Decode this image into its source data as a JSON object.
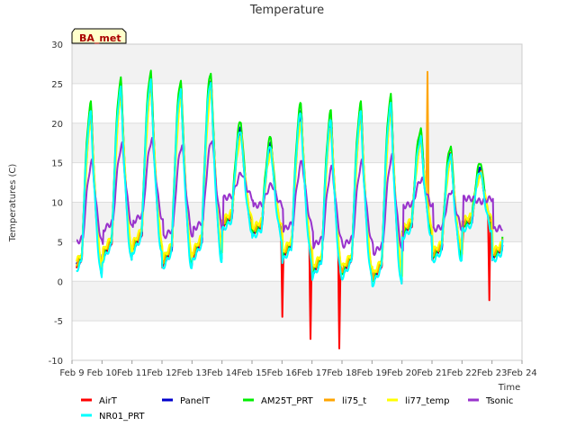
{
  "chart_data": {
    "type": "line",
    "title": "Temperature",
    "badge": "BA_met",
    "xlabel": "Time",
    "ylabel": "Temperatures (C)",
    "ylim": [
      -10,
      30
    ],
    "yticks": [
      -10,
      -5,
      0,
      5,
      10,
      15,
      20,
      25,
      30
    ],
    "xlim": [
      "Feb 9",
      "Feb 24"
    ],
    "xticks": [
      "Feb 9",
      "Feb 10",
      "Feb 11",
      "Feb 12",
      "Feb 13",
      "Feb 14",
      "Feb 15",
      "Feb 16",
      "Feb 17",
      "Feb 18",
      "Feb 19",
      "Feb 20",
      "Feb 21",
      "Feb 22",
      "Feb 23",
      "Feb 24"
    ],
    "grid": "horizontal",
    "legend_position": "bottom",
    "x_unit": "day of February",
    "daily": {
      "day": [
        9,
        10,
        11,
        12,
        13,
        14,
        15,
        16,
        17,
        18,
        19,
        20,
        21,
        22,
        23
      ],
      "min": [
        1,
        3,
        4,
        2,
        3,
        7,
        6,
        3,
        1,
        1,
        0,
        6,
        3,
        7,
        3
      ],
      "max": [
        21,
        24,
        25,
        24,
        25,
        19,
        17,
        21,
        20,
        21,
        22,
        18,
        16,
        14,
        14
      ]
    },
    "series": [
      {
        "name": "AirT",
        "color": "#ff0000",
        "anomalies": [
          {
            "x": 16.0,
            "y": -4.5
          },
          {
            "x": 16.95,
            "y": -7.3
          },
          {
            "x": 17.9,
            "y": -8.5
          },
          {
            "x": 22.0,
            "y": 4.0
          },
          {
            "x": 22.9,
            "y": -2.4
          }
        ]
      },
      {
        "name": "PanelT",
        "color": "#0000cc"
      },
      {
        "name": "AM25T_PRT",
        "color": "#00ee00"
      },
      {
        "name": "li75_t",
        "color": "#ffa500",
        "anomalies": [
          {
            "x": 20.85,
            "y": 26.5
          }
        ]
      },
      {
        "name": "li77_temp",
        "color": "#ffff00"
      },
      {
        "name": "Tsonic",
        "color": "#9933cc"
      },
      {
        "name": "NR01_PRT",
        "color": "#00ffff"
      }
    ]
  }
}
